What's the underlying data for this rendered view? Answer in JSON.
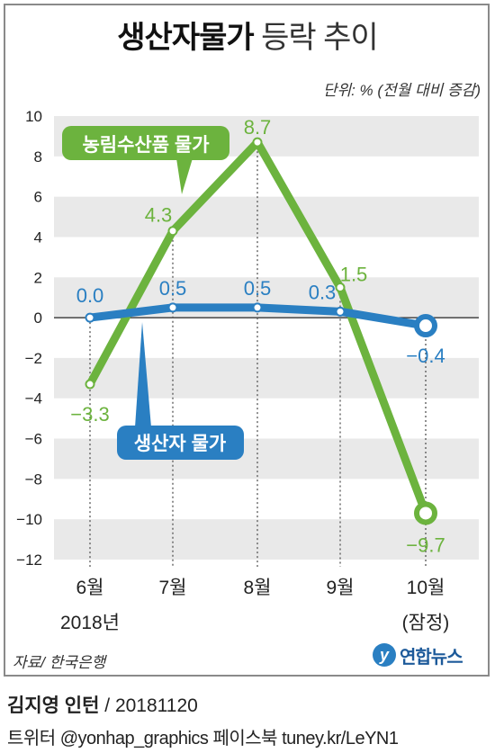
{
  "title": {
    "bold": "생산자물가",
    "light": "등락 추이"
  },
  "unit_note": "단위: % (전월 대비 증감)",
  "chart_data": {
    "type": "line",
    "categories": [
      "6월",
      "7월",
      "8월",
      "9월",
      "10월"
    ],
    "category_sublabels": [
      "2018년",
      "",
      "",
      "",
      "(잠정)"
    ],
    "series": [
      {
        "name": "농림수산품 물가",
        "values": [
          -3.3,
          4.3,
          8.7,
          1.5,
          -9.7
        ],
        "labels": [
          "−3.3",
          "4.3",
          "8.7",
          "1.5",
          "−9.7"
        ],
        "color": "#6cb33e"
      },
      {
        "name": "생산자 물가",
        "values": [
          0.0,
          0.5,
          0.5,
          0.3,
          -0.4
        ],
        "labels": [
          "0.0",
          "0.5",
          "0.5",
          "0.3",
          "−0.4"
        ],
        "color": "#2a7fc2"
      }
    ],
    "ylim": [
      -12,
      10
    ],
    "yticks": [
      10,
      8,
      6,
      4,
      2,
      0,
      -2,
      -4,
      -6,
      -8,
      -10,
      -12
    ],
    "ytick_labels": [
      "10",
      "8",
      "6",
      "4",
      "2",
      "0",
      "−2",
      "−4",
      "−6",
      "−8",
      "−10",
      "−12"
    ],
    "grid": "alternating horizontal bands",
    "xlabel": "",
    "ylabel": ""
  },
  "source": "자료/ 한국은행",
  "logo": {
    "mark": "y",
    "text": "연합뉴스"
  },
  "credit": {
    "author": "김지영 인턴",
    "sep": " / ",
    "date": "20181120"
  },
  "social": "트위터 @yonhap_graphics  페이스북 tuney.kr/LeYN1"
}
